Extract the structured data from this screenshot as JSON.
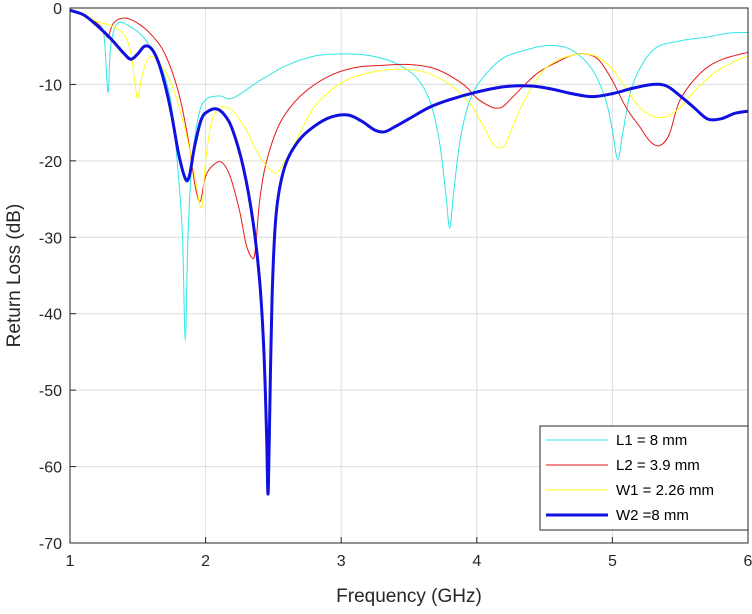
{
  "chart_data": {
    "type": "line",
    "title": "",
    "xlabel": "Frequency (GHz)",
    "ylabel": "Return Loss (dB)",
    "xlim": [
      1,
      6
    ],
    "ylim": [
      -70,
      0
    ],
    "xticks": [
      1,
      2,
      3,
      4,
      5,
      6
    ],
    "yticks": [
      0,
      -10,
      -20,
      -30,
      -40,
      -50,
      -60,
      -70
    ],
    "xtick_labels": [
      "1",
      "2",
      "3",
      "4",
      "5",
      "6"
    ],
    "ytick_labels": [
      "0",
      "-10",
      "-20",
      "-30",
      "-40",
      "-50",
      "-60",
      "-70"
    ],
    "grid": true,
    "legend_position": "bottom-right",
    "series": [
      {
        "name": "L1 = 8 mm",
        "color": "#2fe6e6",
        "x": [
          1.0,
          1.1,
          1.2,
          1.25,
          1.28,
          1.3,
          1.35,
          1.45,
          1.55,
          1.65,
          1.7,
          1.75,
          1.8,
          1.83,
          1.85,
          1.87,
          1.9,
          1.95,
          2.0,
          2.1,
          2.2,
          2.4,
          2.6,
          2.8,
          3.0,
          3.2,
          3.4,
          3.55,
          3.65,
          3.72,
          3.77,
          3.8,
          3.83,
          3.88,
          3.95,
          4.05,
          4.2,
          4.4,
          4.55,
          4.7,
          4.85,
          4.95,
          5.0,
          5.04,
          5.08,
          5.15,
          5.3,
          5.5,
          5.7,
          5.85,
          6.0
        ],
        "y": [
          -0.3,
          -0.8,
          -2.0,
          -3.5,
          -11.0,
          -5.0,
          -2.0,
          -2.5,
          -4.0,
          -7.0,
          -9.0,
          -13.0,
          -22.0,
          -30.0,
          -43.5,
          -30.0,
          -20.0,
          -14.0,
          -12.0,
          -11.5,
          -11.8,
          -9.5,
          -7.5,
          -6.3,
          -6.0,
          -6.2,
          -7.2,
          -9.0,
          -12.0,
          -17.0,
          -24.0,
          -28.8,
          -24.0,
          -17.0,
          -12.0,
          -9.0,
          -6.5,
          -5.3,
          -4.9,
          -5.5,
          -8.0,
          -12.0,
          -16.0,
          -19.8,
          -16.0,
          -10.0,
          -5.5,
          -4.3,
          -3.8,
          -3.3,
          -3.2
        ]
      },
      {
        "name": "L2 = 3.9 mm",
        "color": "#e61919",
        "x": [
          1.0,
          1.1,
          1.2,
          1.25,
          1.28,
          1.32,
          1.4,
          1.5,
          1.6,
          1.7,
          1.8,
          1.87,
          1.92,
          1.96,
          2.0,
          2.06,
          2.12,
          2.18,
          2.25,
          2.3,
          2.35,
          2.37,
          2.4,
          2.45,
          2.55,
          2.7,
          2.9,
          3.1,
          3.3,
          3.5,
          3.7,
          3.9,
          4.0,
          4.1,
          4.15,
          4.2,
          4.3,
          4.45,
          4.6,
          4.7,
          4.8,
          4.9,
          5.0,
          5.1,
          5.2,
          5.28,
          5.35,
          5.42,
          5.5,
          5.65,
          5.8,
          6.0
        ],
        "y": [
          -0.3,
          -0.8,
          -2.0,
          -3.0,
          -3.8,
          -2.0,
          -1.3,
          -2.0,
          -3.5,
          -6.0,
          -11.0,
          -17.0,
          -23.0,
          -25.3,
          -22.0,
          -20.5,
          -20.2,
          -22.0,
          -26.5,
          -31.0,
          -32.8,
          -31.0,
          -25.0,
          -20.0,
          -15.0,
          -11.5,
          -9.0,
          -7.8,
          -7.5,
          -7.4,
          -8.0,
          -10.0,
          -11.8,
          -12.9,
          -13.1,
          -12.8,
          -11.0,
          -8.5,
          -7.0,
          -6.2,
          -6.0,
          -6.8,
          -9.5,
          -13.0,
          -15.5,
          -17.5,
          -18.0,
          -16.5,
          -12.0,
          -8.5,
          -6.8,
          -5.8
        ]
      },
      {
        "name": "W1 = 2.26 mm",
        "color": "#ffff1a",
        "x": [
          1.0,
          1.1,
          1.2,
          1.3,
          1.4,
          1.45,
          1.48,
          1.5,
          1.53,
          1.58,
          1.65,
          1.75,
          1.85,
          1.92,
          1.96,
          1.98,
          2.0,
          2.05,
          2.12,
          2.2,
          2.3,
          2.4,
          2.5,
          2.55,
          2.65,
          2.8,
          3.0,
          3.2,
          3.4,
          3.6,
          3.8,
          3.95,
          4.05,
          4.12,
          4.18,
          4.22,
          4.3,
          4.4,
          4.5,
          4.6,
          4.7,
          4.8,
          4.9,
          5.0,
          5.1,
          5.2,
          5.3,
          5.4,
          5.5,
          5.6,
          5.75,
          5.9,
          6.0
        ],
        "y": [
          -0.3,
          -0.8,
          -1.8,
          -2.3,
          -3.5,
          -6.0,
          -10.0,
          -11.8,
          -9.0,
          -6.5,
          -7.0,
          -10.0,
          -16.0,
          -22.0,
          -26.0,
          -25.0,
          -20.0,
          -14.5,
          -13.0,
          -13.5,
          -16.0,
          -19.5,
          -21.5,
          -21.0,
          -18.0,
          -13.0,
          -9.8,
          -8.5,
          -8.0,
          -8.3,
          -10.0,
          -12.5,
          -15.5,
          -17.8,
          -18.3,
          -17.5,
          -14.0,
          -10.5,
          -8.0,
          -6.8,
          -6.2,
          -6.0,
          -6.5,
          -8.0,
          -10.5,
          -13.0,
          -14.2,
          -14.2,
          -13.0,
          -11.0,
          -8.5,
          -7.0,
          -6.3
        ]
      },
      {
        "name": "W2 =8 mm",
        "color": "#1010e0",
        "x": [
          1.0,
          1.1,
          1.2,
          1.3,
          1.4,
          1.45,
          1.5,
          1.55,
          1.6,
          1.65,
          1.7,
          1.75,
          1.8,
          1.85,
          1.88,
          1.92,
          1.97,
          2.02,
          2.08,
          2.14,
          2.2,
          2.28,
          2.35,
          2.4,
          2.43,
          2.45,
          2.46,
          2.47,
          2.49,
          2.52,
          2.58,
          2.68,
          2.8,
          2.92,
          3.05,
          3.15,
          3.25,
          3.32,
          3.4,
          3.5,
          3.65,
          3.8,
          4.0,
          4.2,
          4.4,
          4.55,
          4.7,
          4.85,
          5.0,
          5.15,
          5.3,
          5.4,
          5.5,
          5.6,
          5.7,
          5.8,
          5.9,
          6.0
        ],
        "y": [
          -0.3,
          -0.9,
          -2.3,
          -4.0,
          -6.0,
          -6.7,
          -6.0,
          -5.0,
          -5.3,
          -7.0,
          -10.0,
          -14.0,
          -19.0,
          -22.3,
          -22.0,
          -18.0,
          -14.5,
          -13.5,
          -13.2,
          -14.0,
          -16.0,
          -21.0,
          -28.0,
          -36.0,
          -45.0,
          -56.0,
          -63.6,
          -56.0,
          -38.0,
          -27.0,
          -21.0,
          -17.5,
          -15.5,
          -14.3,
          -14.0,
          -14.8,
          -16.0,
          -16.2,
          -15.5,
          -14.5,
          -13.0,
          -12.0,
          -11.0,
          -10.3,
          -10.2,
          -10.6,
          -11.2,
          -11.6,
          -11.2,
          -10.5,
          -10.0,
          -10.2,
          -11.5,
          -13.0,
          -14.5,
          -14.5,
          -13.8,
          -13.5
        ]
      }
    ]
  }
}
